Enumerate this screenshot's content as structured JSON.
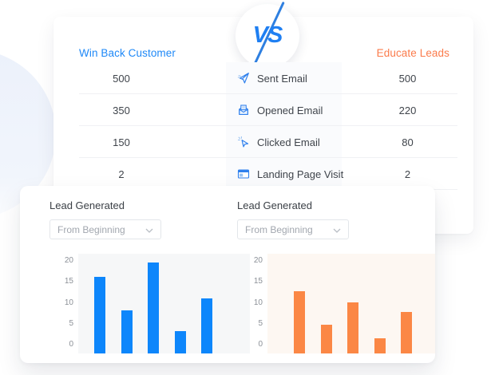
{
  "comparison": {
    "left_title": "Win Back Customer",
    "right_title": "Educate Leads",
    "vs_label": "VS",
    "rows": [
      {
        "left": "500",
        "icon": "send-email-icon",
        "label": "Sent Email",
        "right": "500"
      },
      {
        "left": "350",
        "icon": "opened-email-icon",
        "label": "Opened Email",
        "right": "220"
      },
      {
        "left": "150",
        "icon": "clicked-email-icon",
        "label": "Clicked Email",
        "right": "80"
      },
      {
        "left": "2",
        "icon": "landing-page-icon",
        "label": "Landing Page Visit",
        "right": "2"
      }
    ]
  },
  "charts_panel": {
    "panels": [
      {
        "title": "Lead Generated",
        "dropdown_value": "From Beginning",
        "dropdown_icon": "chevron-down-icon"
      },
      {
        "title": "Lead Generated",
        "dropdown_value": "From Beginning",
        "dropdown_icon": "chevron-down-icon"
      }
    ]
  },
  "chart_data": [
    {
      "type": "bar",
      "title": "Lead Generated",
      "series_name": "Win Back Customer",
      "values": [
        16.2,
        8.2,
        19.6,
        3.2,
        11
      ],
      "y_ticks": [
        20,
        15,
        10,
        5,
        0
      ],
      "ylim": [
        0,
        20
      ],
      "x_tick_labels_shown": false,
      "grid": false,
      "legend": "none",
      "color": "#0d86fb",
      "plot_bg": "#f6f7f8",
      "bar_left_offset": 20
    },
    {
      "type": "bar",
      "title": "Lead Generated",
      "series_name": "Educate Leads",
      "values": [
        12.8,
        4.8,
        10.1,
        1.5,
        7.8
      ],
      "y_ticks": [
        20,
        15,
        10,
        5,
        0
      ],
      "ylim": [
        0,
        20
      ],
      "x_tick_labels_shown": false,
      "grid": false,
      "legend": "none",
      "color": "#fb8745",
      "plot_bg": "#fdf7f2",
      "bar_left_offset": 33
    }
  ],
  "colors": {
    "blue_accent": "#1e88f7",
    "orange_accent": "#fb7b4b",
    "bar_blue": "#0d86fb",
    "bar_orange": "#fb8745",
    "text_dark": "#3f444b",
    "divider": "#f0f1f4",
    "mid_column_bg": "#fafbfd"
  }
}
